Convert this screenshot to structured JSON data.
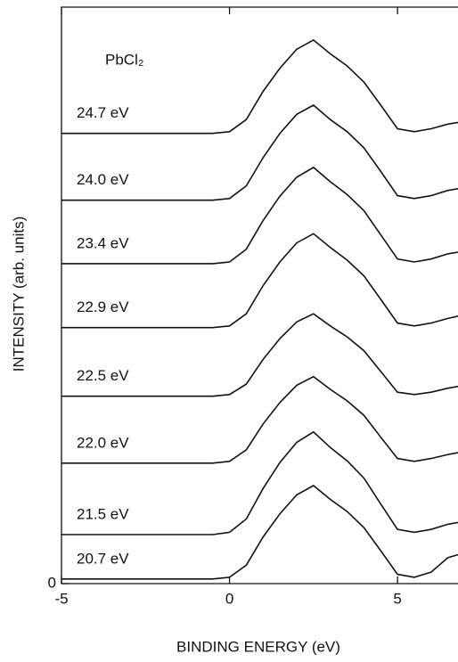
{
  "chart_data": {
    "type": "line",
    "annotation": "PbCl₂",
    "x_label": "BINDING  ENERGY (eV)",
    "y_label": "INTENSITY (arb. units)",
    "xlim": [
      -5,
      6.8
    ],
    "xticks": [
      -5,
      0,
      5
    ],
    "ylim": [
      0,
      10
    ],
    "yticks": [
      0
    ],
    "x": [
      -5,
      -4.5,
      -4,
      -3.5,
      -3,
      -2.5,
      -2,
      -1.5,
      -1,
      -0.5,
      0,
      0.5,
      1,
      1.5,
      2,
      2.5,
      3,
      3.5,
      4,
      4.5,
      5,
      5.5,
      6,
      6.5,
      6.8
    ],
    "series": [
      {
        "name": "24.7 eV",
        "color": "#111111",
        "values": [
          7.81,
          7.81,
          7.81,
          7.81,
          7.81,
          7.81,
          7.81,
          7.81,
          7.81,
          7.81,
          7.84,
          8.05,
          8.54,
          8.94,
          9.27,
          9.43,
          9.19,
          8.98,
          8.7,
          8.3,
          7.89,
          7.84,
          7.89,
          7.97,
          8.0
        ]
      },
      {
        "name": "24.0 eV",
        "color": "#111111",
        "values": [
          6.65,
          6.65,
          6.65,
          6.65,
          6.65,
          6.65,
          6.65,
          6.65,
          6.65,
          6.65,
          6.68,
          6.9,
          7.39,
          7.81,
          8.14,
          8.3,
          8.05,
          7.84,
          7.56,
          7.15,
          6.73,
          6.68,
          6.73,
          6.82,
          6.85
        ]
      },
      {
        "name": "23.4 eV",
        "color": "#111111",
        "values": [
          5.55,
          5.55,
          5.55,
          5.55,
          5.55,
          5.55,
          5.55,
          5.55,
          5.55,
          5.55,
          5.58,
          5.8,
          6.3,
          6.72,
          7.05,
          7.22,
          6.97,
          6.75,
          6.47,
          6.05,
          5.63,
          5.58,
          5.63,
          5.72,
          5.75
        ]
      },
      {
        "name": "22.9 eV",
        "color": "#111111",
        "values": [
          4.44,
          4.44,
          4.44,
          4.44,
          4.44,
          4.44,
          4.44,
          4.44,
          4.44,
          4.44,
          4.47,
          4.68,
          5.17,
          5.58,
          5.91,
          6.07,
          5.83,
          5.61,
          5.34,
          4.93,
          4.52,
          4.47,
          4.52,
          4.6,
          4.64
        ]
      },
      {
        "name": "22.5 eV",
        "color": "#111111",
        "values": [
          3.25,
          3.25,
          3.25,
          3.25,
          3.25,
          3.25,
          3.25,
          3.25,
          3.25,
          3.25,
          3.28,
          3.46,
          3.89,
          4.25,
          4.54,
          4.68,
          4.47,
          4.28,
          4.04,
          3.68,
          3.32,
          3.28,
          3.32,
          3.39,
          3.42
        ]
      },
      {
        "name": "22.0 eV",
        "color": "#111111",
        "values": [
          2.09,
          2.09,
          2.09,
          2.09,
          2.09,
          2.09,
          2.09,
          2.09,
          2.09,
          2.09,
          2.12,
          2.32,
          2.77,
          3.14,
          3.44,
          3.59,
          3.37,
          3.17,
          2.92,
          2.54,
          2.17,
          2.12,
          2.17,
          2.24,
          2.27
        ]
      },
      {
        "name": "21.5 eV",
        "color": "#111111",
        "values": [
          0.85,
          0.85,
          0.85,
          0.85,
          0.85,
          0.85,
          0.85,
          0.85,
          0.85,
          0.85,
          0.89,
          1.12,
          1.65,
          2.1,
          2.45,
          2.63,
          2.36,
          2.13,
          1.83,
          1.38,
          0.94,
          0.89,
          0.94,
          1.03,
          1.06
        ]
      },
      {
        "name": "20.7 eV",
        "color": "#111111",
        "values": [
          0.08,
          0.08,
          0.08,
          0.08,
          0.08,
          0.08,
          0.08,
          0.08,
          0.08,
          0.08,
          0.11,
          0.32,
          0.81,
          1.21,
          1.54,
          1.7,
          1.46,
          1.25,
          0.97,
          0.57,
          0.16,
          0.11,
          0.2,
          0.45,
          0.5
        ]
      }
    ]
  }
}
